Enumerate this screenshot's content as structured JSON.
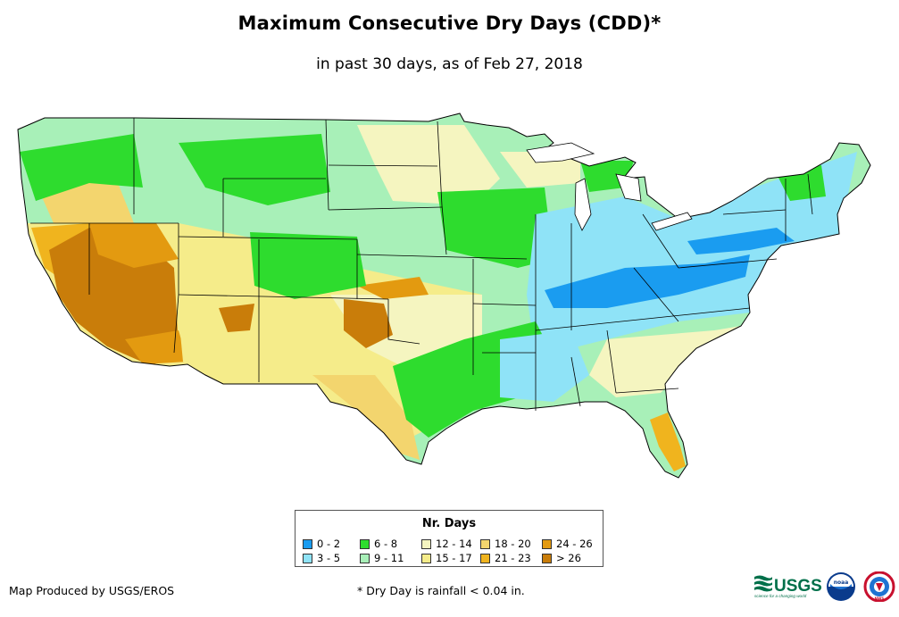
{
  "header": {
    "title": "Maximum Consecutive Dry Days (CDD)*",
    "subtitle": "in past 30 days, as of Feb 27, 2018"
  },
  "map": {
    "region": "Contiguous United States",
    "colors": {
      "ocean": "#ffffff",
      "border": "#000000"
    }
  },
  "legend": {
    "title": "Nr. Days",
    "items": [
      {
        "label": "0 - 2",
        "color": "#1a9cf0"
      },
      {
        "label": "3 - 5",
        "color": "#8fe3f7"
      },
      {
        "label": "6 - 8",
        "color": "#2edc2e"
      },
      {
        "label": "9 - 11",
        "color": "#a8f0b8"
      },
      {
        "label": "12 - 14",
        "color": "#f5f5c0"
      },
      {
        "label": "15 - 17",
        "color": "#f5ec8a"
      },
      {
        "label": "18 - 20",
        "color": "#f3d56e"
      },
      {
        "label": "21 - 23",
        "color": "#f0b41e"
      },
      {
        "label": "24 - 26",
        "color": "#e39a10"
      },
      {
        "label": "> 26",
        "color": "#c97d0a"
      }
    ]
  },
  "footer": {
    "credit": "Map Produced by USGS/EROS",
    "footnote": "* Dry Day is rainfall < 0.04 in."
  },
  "logos": {
    "usgs_text": "USGS",
    "usgs_tagline": "science for a changing world",
    "noaa_text": "noaa",
    "nws_text": "NWS"
  }
}
